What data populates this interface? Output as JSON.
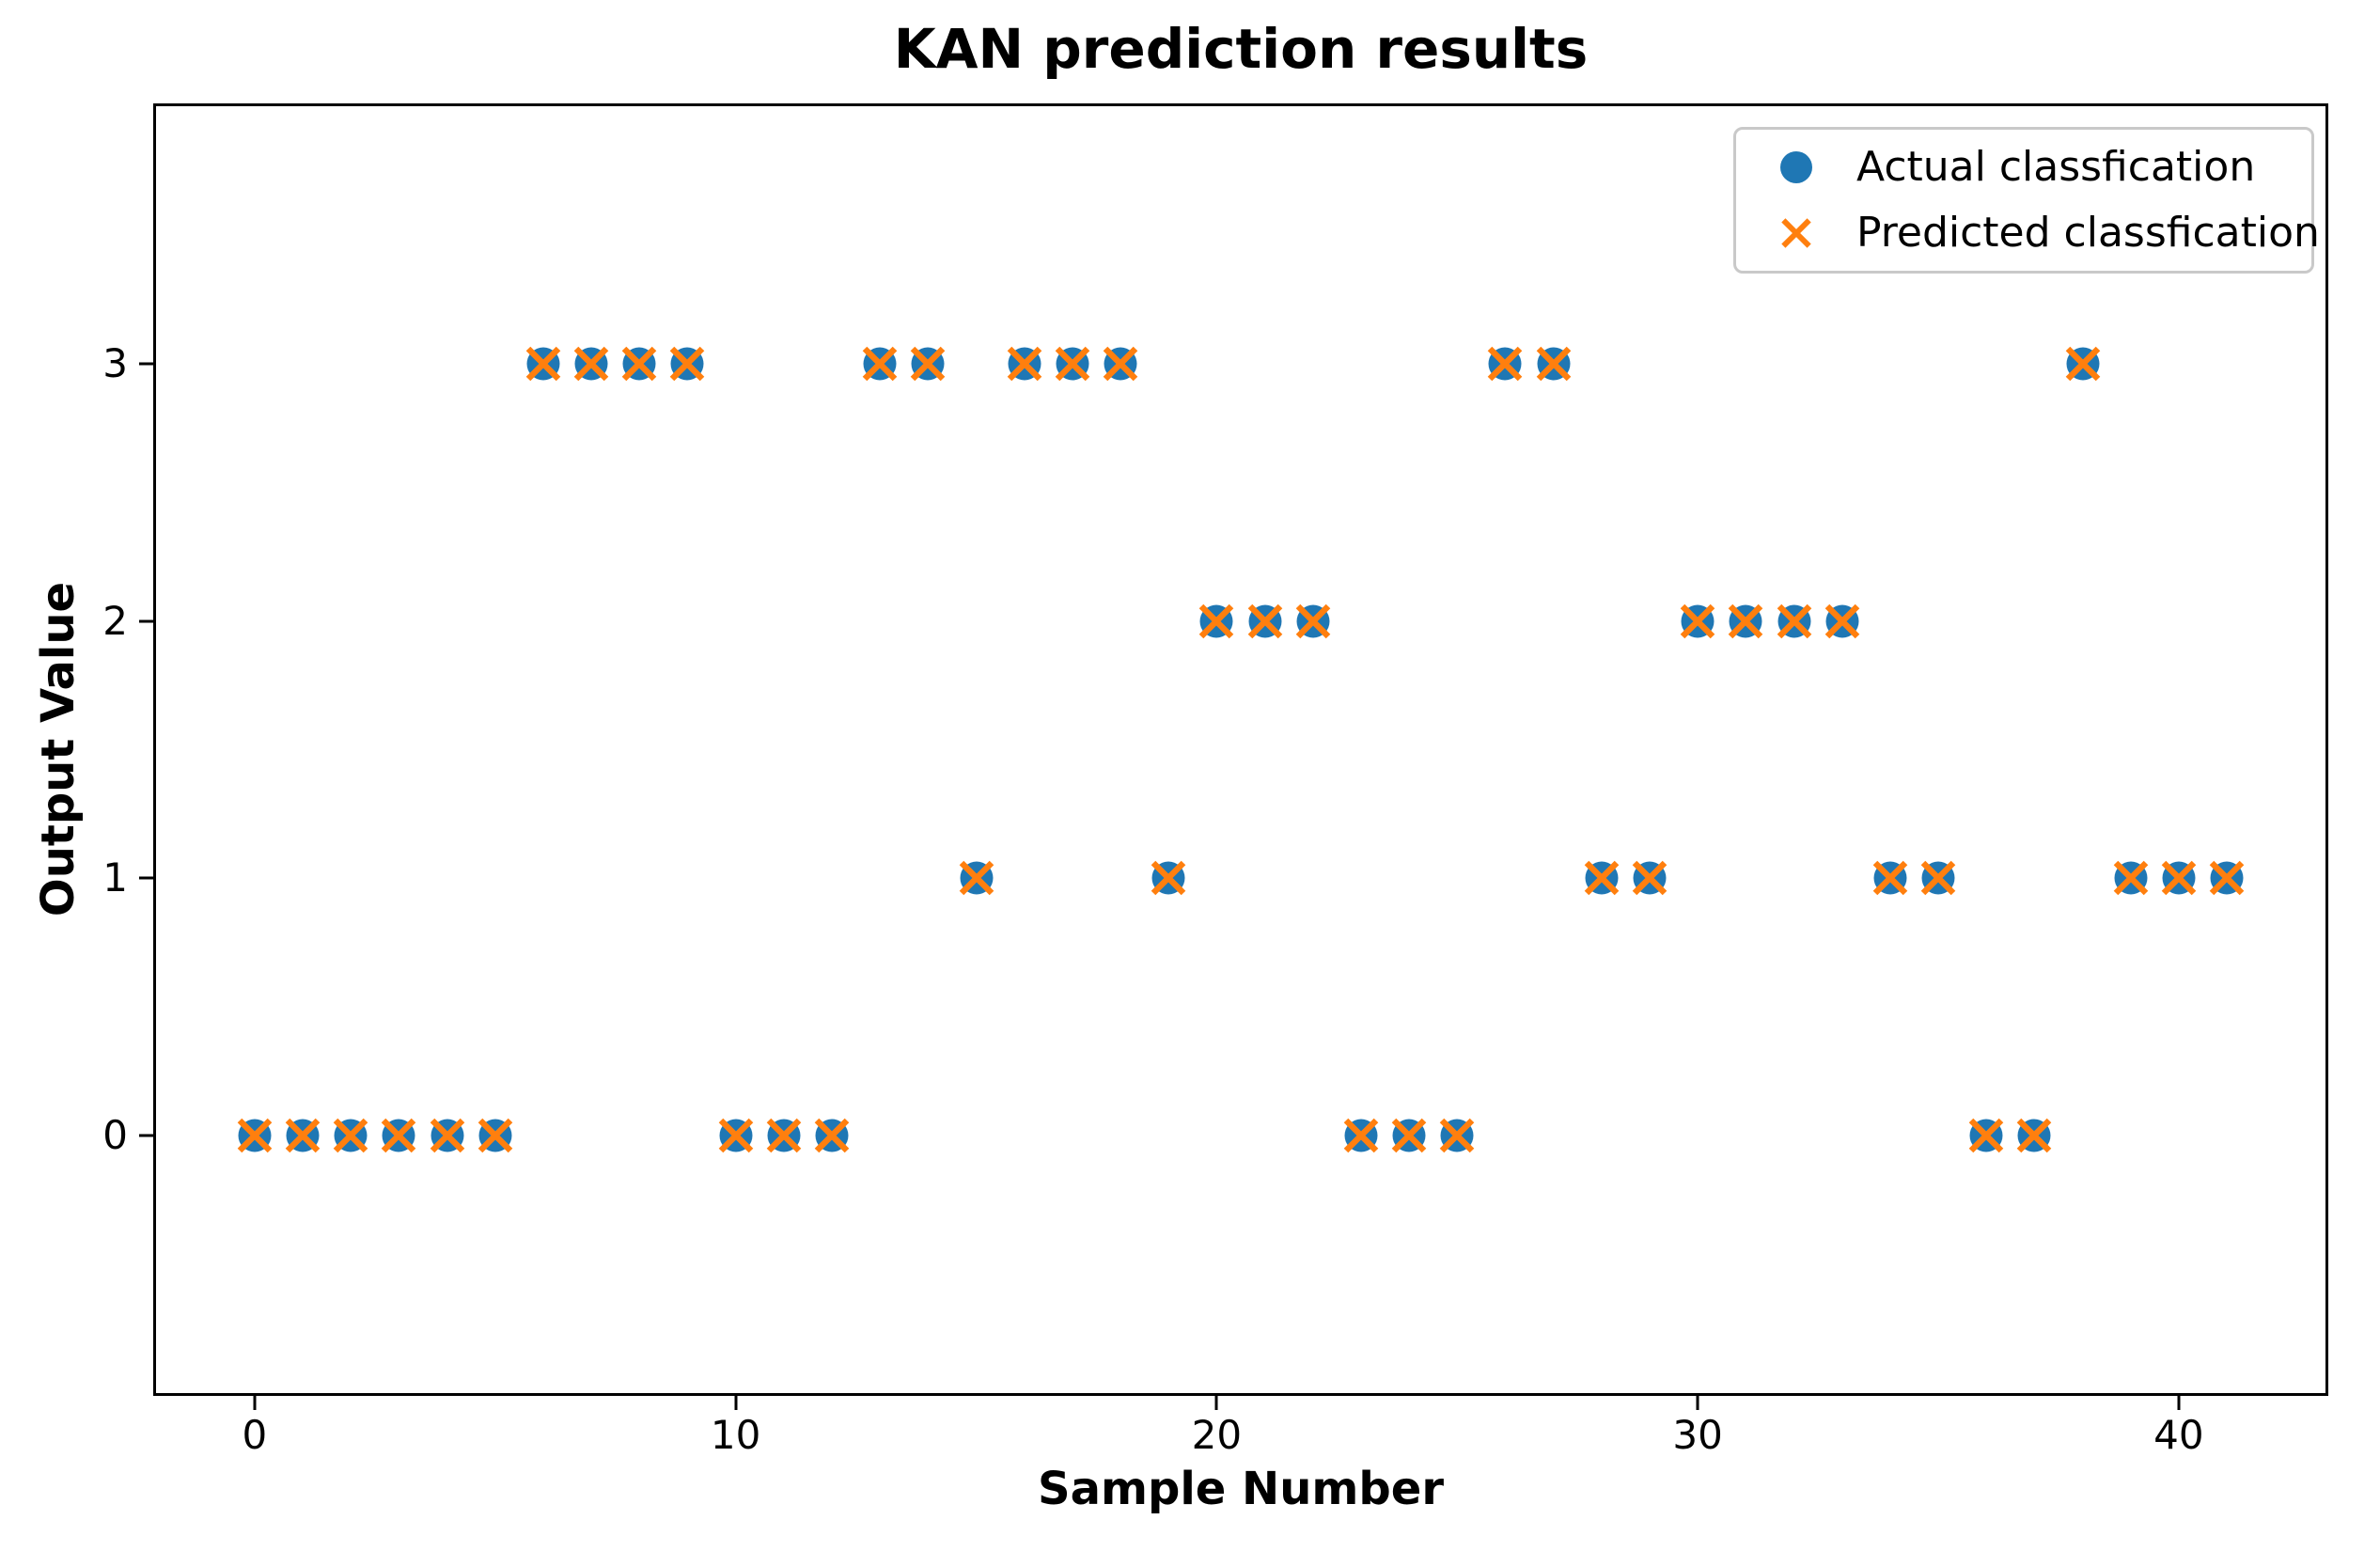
{
  "chart_data": {
    "type": "scatter",
    "title": "KAN prediction results",
    "xlabel": "Sample Number",
    "ylabel": "Output Value",
    "xlim": [
      -2.05,
      43.05
    ],
    "ylim": [
      -1,
      4
    ],
    "xticks": [
      0,
      10,
      20,
      30,
      40
    ],
    "yticks": [
      0,
      1,
      2,
      3
    ],
    "grid": false,
    "legend_position": "upper right",
    "x": [
      0,
      1,
      2,
      3,
      4,
      5,
      6,
      7,
      8,
      9,
      10,
      11,
      12,
      13,
      14,
      15,
      16,
      17,
      18,
      19,
      20,
      21,
      22,
      23,
      24,
      25,
      26,
      27,
      28,
      29,
      30,
      31,
      32,
      33,
      34,
      35,
      36,
      37,
      38,
      39,
      40,
      41
    ],
    "series": [
      {
        "name": "Actual classfication",
        "marker": "circle",
        "color": "#1f77b4",
        "y": [
          0,
          0,
          0,
          0,
          0,
          0,
          3,
          3,
          3,
          3,
          0,
          0,
          0,
          3,
          3,
          1,
          3,
          3,
          3,
          1,
          2,
          2,
          2,
          0,
          0,
          0,
          3,
          3,
          1,
          1,
          2,
          2,
          2,
          2,
          1,
          1,
          0,
          0,
          3,
          1,
          1,
          1
        ]
      },
      {
        "name": "Predicted classfication",
        "marker": "x",
        "color": "#ff7f0e",
        "y": [
          0,
          0,
          0,
          0,
          0,
          0,
          3,
          3,
          3,
          3,
          0,
          0,
          0,
          3,
          3,
          1,
          3,
          3,
          3,
          1,
          2,
          2,
          2,
          0,
          0,
          0,
          3,
          3,
          1,
          1,
          2,
          2,
          2,
          2,
          1,
          1,
          0,
          0,
          3,
          1,
          1,
          1
        ]
      }
    ],
    "colors": {
      "actual": "#1f77b4",
      "predicted": "#ff7f0e",
      "axis": "#000000",
      "legend_border": "#c9c9c9",
      "background": "#ffffff"
    }
  }
}
